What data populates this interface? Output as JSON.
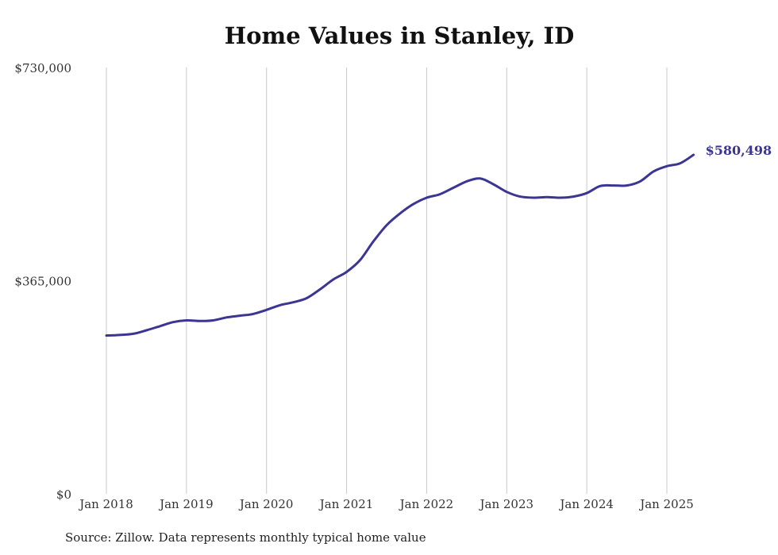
{
  "colors": {
    "line": "#3b3594",
    "grid": "#c8c8c8",
    "background": "#ffffff"
  },
  "chart_data": {
    "type": "line",
    "title": "Home Values in Stanley, ID",
    "xlabel": "",
    "ylabel": "",
    "x_ticks": [
      "Jan 2018",
      "Jan 2019",
      "Jan 2020",
      "Jan 2021",
      "Jan 2022",
      "Jan 2023",
      "Jan 2024",
      "Jan 2025"
    ],
    "y_ticks": [
      "$0",
      "$365,000",
      "$730,000"
    ],
    "ylim": [
      0,
      730000
    ],
    "grid": "vertical",
    "end_label": "$580,498",
    "series": [
      {
        "x": [
          "2018-01",
          "2018-03",
          "2018-05",
          "2018-07",
          "2018-09",
          "2018-11",
          "2019-01",
          "2019-03",
          "2019-05",
          "2019-07",
          "2019-09",
          "2019-11",
          "2020-01",
          "2020-03",
          "2020-05",
          "2020-07",
          "2020-09",
          "2020-11",
          "2021-01",
          "2021-03",
          "2021-05",
          "2021-07",
          "2021-09",
          "2021-11",
          "2022-01",
          "2022-03",
          "2022-05",
          "2022-07",
          "2022-09",
          "2022-11",
          "2023-01",
          "2023-03",
          "2023-05",
          "2023-07",
          "2023-09",
          "2023-11",
          "2024-01",
          "2024-03",
          "2024-05",
          "2024-07",
          "2024-09",
          "2024-11",
          "2025-01",
          "2025-03",
          "2025-05"
        ],
        "values": [
          271000,
          272000,
          274000,
          280000,
          287000,
          294000,
          297000,
          296000,
          297000,
          302000,
          305000,
          308000,
          315000,
          323000,
          328000,
          335000,
          350000,
          367000,
          380000,
          400000,
          432000,
          460000,
          480000,
          496000,
          507000,
          513000,
          524000,
          535000,
          540000,
          530000,
          517000,
          509000,
          507000,
          508000,
          507000,
          509000,
          515000,
          527000,
          528000,
          528000,
          535000,
          552000,
          561000,
          566000,
          580498
        ]
      }
    ]
  },
  "source": "Source: Zillow. Data represents monthly typical home value"
}
